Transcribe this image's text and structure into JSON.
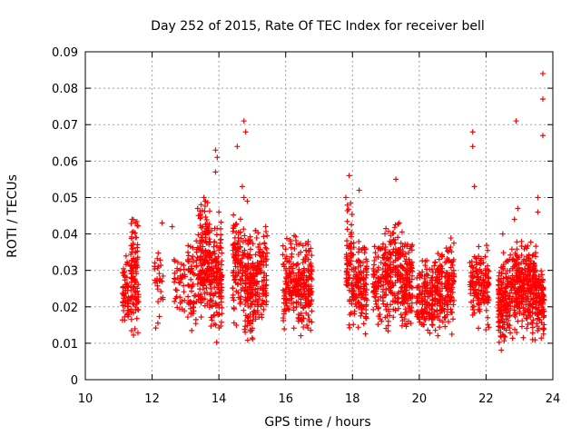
{
  "chart_data": {
    "type": "scatter",
    "title": "Day 252 of 2015, Rate Of TEC Index for receiver bell",
    "xlabel": "GPS time / hours",
    "ylabel": "ROTI / TECUs",
    "xlim": [
      10,
      24
    ],
    "ylim": [
      0,
      0.09
    ],
    "xticks": [
      "10",
      "12",
      "14",
      "16",
      "18",
      "20",
      "22",
      "24"
    ],
    "yticks": [
      "0",
      "0.01",
      "0.02",
      "0.03",
      "0.04",
      "0.05",
      "0.06",
      "0.07",
      "0.08",
      "0.09"
    ],
    "grid": true,
    "marker": "+",
    "color": "#ff0000",
    "clusters": [
      {
        "x": [
          11.1,
          11.3
        ],
        "y": [
          0.01,
          0.035
        ],
        "n": 60
      },
      {
        "x": [
          11.35,
          11.6
        ],
        "y": [
          0.01,
          0.044
        ],
        "n": 110
      },
      {
        "x": [
          12.05,
          12.35
        ],
        "y": [
          0.012,
          0.036
        ],
        "n": 30
      },
      {
        "x": [
          12.65,
          13.0
        ],
        "y": [
          0.012,
          0.036
        ],
        "n": 40
      },
      {
        "x": [
          13.05,
          13.35
        ],
        "y": [
          0.01,
          0.04
        ],
        "n": 60
      },
      {
        "x": [
          13.35,
          13.75
        ],
        "y": [
          0.01,
          0.05
        ],
        "n": 170
      },
      {
        "x": [
          13.75,
          14.1
        ],
        "y": [
          0.009,
          0.044
        ],
        "n": 140
      },
      {
        "x": [
          14.4,
          14.75
        ],
        "y": [
          0.01,
          0.046
        ],
        "n": 110
      },
      {
        "x": [
          14.75,
          15.05
        ],
        "y": [
          0.008,
          0.04
        ],
        "n": 130
      },
      {
        "x": [
          15.05,
          15.45
        ],
        "y": [
          0.01,
          0.042
        ],
        "n": 110
      },
      {
        "x": [
          15.9,
          16.35
        ],
        "y": [
          0.01,
          0.04
        ],
        "n": 120
      },
      {
        "x": [
          16.35,
          16.8
        ],
        "y": [
          0.008,
          0.039
        ],
        "n": 150
      },
      {
        "x": [
          17.8,
          18.0
        ],
        "y": [
          0.009,
          0.05
        ],
        "n": 70
      },
      {
        "x": [
          18.0,
          18.45
        ],
        "y": [
          0.01,
          0.038
        ],
        "n": 130
      },
      {
        "x": [
          18.6,
          18.95
        ],
        "y": [
          0.01,
          0.038
        ],
        "n": 80
      },
      {
        "x": [
          18.95,
          19.4
        ],
        "y": [
          0.009,
          0.043
        ],
        "n": 150
      },
      {
        "x": [
          19.4,
          19.8
        ],
        "y": [
          0.009,
          0.042
        ],
        "n": 140
      },
      {
        "x": [
          19.9,
          20.35
        ],
        "y": [
          0.009,
          0.033
        ],
        "n": 110
      },
      {
        "x": [
          20.35,
          20.8
        ],
        "y": [
          0.008,
          0.036
        ],
        "n": 140
      },
      {
        "x": [
          20.8,
          21.05
        ],
        "y": [
          0.01,
          0.04
        ],
        "n": 80
      },
      {
        "x": [
          21.5,
          21.75
        ],
        "y": [
          0.015,
          0.037
        ],
        "n": 60
      },
      {
        "x": [
          21.75,
          22.1
        ],
        "y": [
          0.01,
          0.037
        ],
        "n": 90
      },
      {
        "x": [
          22.35,
          22.75
        ],
        "y": [
          0.006,
          0.035
        ],
        "n": 160
      },
      {
        "x": [
          22.75,
          23.1
        ],
        "y": [
          0.01,
          0.038
        ],
        "n": 130
      },
      {
        "x": [
          23.1,
          23.5
        ],
        "y": [
          0.008,
          0.038
        ],
        "n": 160
      },
      {
        "x": [
          23.5,
          23.75
        ],
        "y": [
          0.008,
          0.032
        ],
        "n": 90
      }
    ],
    "outliers": [
      [
        11.4,
        0.044
      ],
      [
        11.5,
        0.043
      ],
      [
        12.3,
        0.043
      ],
      [
        12.6,
        0.042
      ],
      [
        13.55,
        0.05
      ],
      [
        13.6,
        0.049
      ],
      [
        13.9,
        0.063
      ],
      [
        13.95,
        0.061
      ],
      [
        13.9,
        0.057
      ],
      [
        14.0,
        0.046
      ],
      [
        14.55,
        0.064
      ],
      [
        14.7,
        0.053
      ],
      [
        14.75,
        0.071
      ],
      [
        14.8,
        0.068
      ],
      [
        14.75,
        0.05
      ],
      [
        14.85,
        0.049
      ],
      [
        15.4,
        0.042
      ],
      [
        17.8,
        0.05
      ],
      [
        17.9,
        0.056
      ],
      [
        18.2,
        0.052
      ],
      [
        19.3,
        0.055
      ],
      [
        19.4,
        0.043
      ],
      [
        21.6,
        0.068
      ],
      [
        21.6,
        0.064
      ],
      [
        21.65,
        0.053
      ],
      [
        22.5,
        0.04
      ],
      [
        22.9,
        0.071
      ],
      [
        22.95,
        0.047
      ],
      [
        22.85,
        0.044
      ],
      [
        23.55,
        0.046
      ],
      [
        23.55,
        0.05
      ],
      [
        23.7,
        0.084
      ],
      [
        23.7,
        0.077
      ],
      [
        23.7,
        0.067
      ]
    ]
  }
}
